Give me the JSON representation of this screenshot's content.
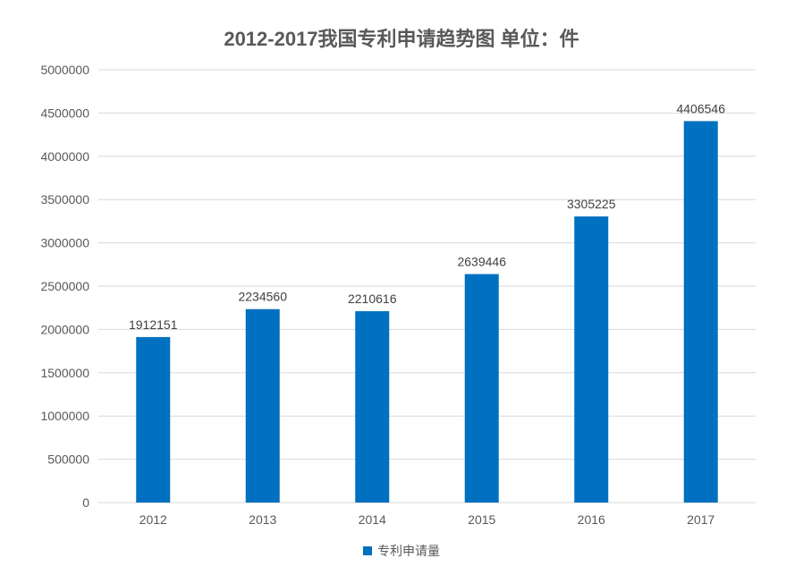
{
  "colors": {
    "bar": "#0070C0",
    "grid": "#D9D9D9",
    "text": "#595959"
  },
  "chart_data": {
    "type": "bar",
    "title": "2012-2017我国专利申请趋势图  单位：件",
    "xlabel": "",
    "ylabel": "",
    "categories": [
      "2012",
      "2013",
      "2014",
      "2015",
      "2016",
      "2017"
    ],
    "series": [
      {
        "name": "专利申请量",
        "values": [
          1912151,
          2234560,
          2210616,
          2639446,
          3305225,
          4406546
        ]
      }
    ],
    "ylim": [
      0,
      5000000
    ],
    "yticks": [
      "0",
      "500000",
      "1000000",
      "1500000",
      "2000000",
      "2500000",
      "3000000",
      "3500000",
      "4000000",
      "4500000",
      "5000000"
    ],
    "grid": true,
    "legend": "bottom"
  }
}
